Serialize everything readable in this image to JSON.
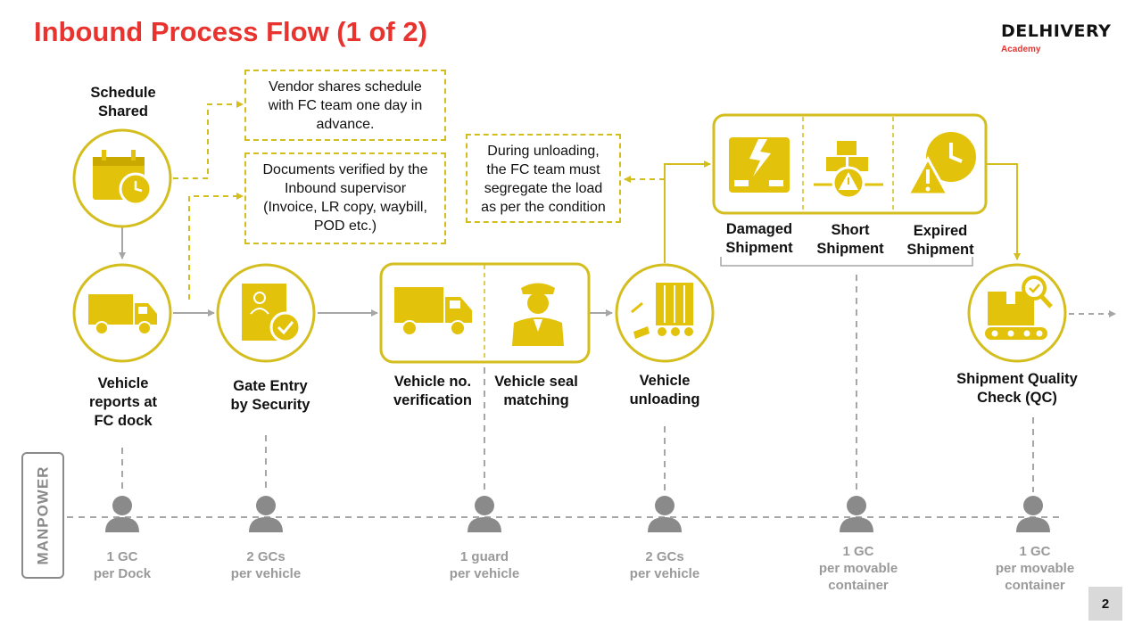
{
  "header": {
    "title": "Inbound Process Flow (1 of 2)",
    "brand_name": "DELHIVERY",
    "brand_sub": "Academy"
  },
  "colors": {
    "title_red": "#e8332f",
    "accent_yellow": "#d4be1e",
    "icon_yellow": "#e3c20c",
    "arrow_gray": "#a6a6a6",
    "manpower_gray": "#8a8a8a"
  },
  "steps": {
    "schedule": {
      "label": "Schedule\nShared",
      "icon": "calendar-clock-icon"
    },
    "vehicle_reports": {
      "label": "Vehicle\nreports at\nFC dock",
      "icon": "truck-icon"
    },
    "gate_entry": {
      "label": "Gate Entry\nby Security",
      "icon": "document-check-icon"
    },
    "vehicle_no": {
      "label": "Vehicle no.\nverification",
      "icon": "truck-icon"
    },
    "vehicle_seal": {
      "label": "Vehicle seal\nmatching",
      "icon": "security-guard-icon"
    },
    "unloading": {
      "label": "Vehicle\nunloading",
      "icon": "unloading-trolley-icon"
    },
    "qc": {
      "label": "Shipment Quality\nCheck (QC)",
      "icon": "box-conveyor-inspection-icon"
    }
  },
  "conditions": [
    {
      "label": "Damaged\nShipment",
      "icon": "damaged-box-icon"
    },
    {
      "label": "Short\nShipment",
      "icon": "short-boxes-icon"
    },
    {
      "label": "Expired\nShipment",
      "icon": "expired-clock-icon"
    }
  ],
  "notes": {
    "schedule": "Vendor shares schedule\nwith FC team one day in\nadvance.",
    "documents": "Documents verified by the\nInbound supervisor\n(Invoice, LR copy, waybill,\nPOD etc.)",
    "unloading": "During unloading,\nthe FC team must\nsegregate the load\nas per the condition"
  },
  "manpower": {
    "title": "MANPOWER",
    "entries": [
      {
        "label": "1 GC\nper Dock"
      },
      {
        "label": "2 GCs\nper vehicle"
      },
      {
        "label": "1 guard\nper vehicle"
      },
      {
        "label": "2 GCs\nper vehicle"
      },
      {
        "label": "1 GC\nper movable\ncontainer"
      },
      {
        "label": "1 GC\nper movable\ncontainer"
      }
    ]
  },
  "footer": {
    "page_number": "2"
  }
}
